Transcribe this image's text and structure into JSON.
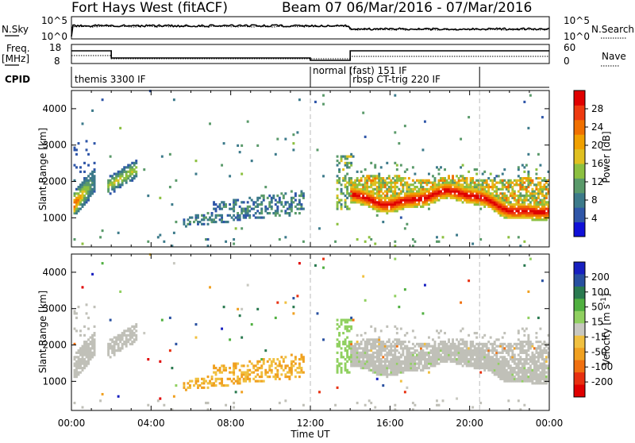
{
  "header": {
    "station": "Fort Hays West (fitACF)",
    "beam_date": "Beam 07  06/Mar/2016 - 07/Mar/2016"
  },
  "noise_panel": {
    "left_label": "N.Sky",
    "left_ticks": [
      "10^5",
      "10^0"
    ],
    "right_ticks": [
      "10^5",
      "10^0"
    ],
    "right_label": "N.Search"
  },
  "freq_panel": {
    "left_label_1": "Freq.",
    "left_label_2": "[MHz]",
    "left_ticks": [
      "18",
      "8"
    ],
    "right_ticks": [
      "60",
      "0"
    ],
    "right_label": "Nave"
  },
  "cpid": {
    "label": "CPID",
    "programs": [
      {
        "name": "themis 3300 IF",
        "start_hour": 0
      },
      {
        "name": "normal (fast) 151 IF",
        "start_hour": 12
      },
      {
        "name": "rbsp CT-trig 220 IF",
        "start_hour": 14
      }
    ]
  },
  "colors": {
    "power_scale": [
      "#1010d8",
      "#2f56a8",
      "#3c7a8a",
      "#5a9a6a",
      "#8cc040",
      "#e0c020",
      "#f0a000",
      "#f07000",
      "#ee3a10",
      "#e00000"
    ],
    "velocity_scale": [
      "#1820c0",
      "#2850a0",
      "#2a7a50",
      "#50b040",
      "#90d060",
      "#c8c8c0",
      "#f0c040",
      "#f0a020",
      "#f07010",
      "#e83010",
      "#e00000"
    ],
    "ground_scatter": "#c0c0b8"
  },
  "chart_data": [
    {
      "type": "heatmap",
      "title": "",
      "xlabel": "",
      "ylabel": "Slant Range [km]",
      "xlim_hours": [
        0,
        24
      ],
      "ylim": [
        200,
        4500
      ],
      "x_tick_labels": [
        "00:00",
        "04:00",
        "08:00",
        "12:00",
        "16:00",
        "20:00",
        "00:00"
      ],
      "y_ticks": [
        1000,
        2000,
        3000,
        4000
      ],
      "colorbar": {
        "label": "Power [dB]",
        "min": 0,
        "max": 32,
        "ticks": [
          4,
          8,
          12,
          16,
          20,
          24,
          28
        ]
      },
      "features": [
        {
          "name": "early band",
          "t_start": 0.1,
          "t_end": 1.1,
          "range_start": 1300,
          "range_end": 2100,
          "power": 14
        },
        {
          "name": "early band 2",
          "t_start": 1.8,
          "t_end": 3.3,
          "range_start": 1750,
          "range_end": 2500,
          "power": 10
        },
        {
          "name": "evening band",
          "t_start": 5.5,
          "t_end": 11.5,
          "range_start": 800,
          "range_end": 1500,
          "power": 7
        },
        {
          "name": "main echo",
          "t_start": 13.9,
          "t_end": 24,
          "range_start": 1100,
          "range_end": 2200,
          "power": 26
        }
      ]
    },
    {
      "type": "heatmap",
      "title": "",
      "xlabel": "Time UT",
      "ylabel": "Slant Range [km]",
      "xlim_hours": [
        0,
        24
      ],
      "ylim": [
        200,
        4500
      ],
      "x_tick_labels": [
        "00:00",
        "04:00",
        "08:00",
        "12:00",
        "16:00",
        "20:00",
        "00:00"
      ],
      "y_ticks": [
        1000,
        2000,
        3000,
        4000
      ],
      "colorbar": {
        "label": "Velocity [m s^-1]",
        "ticks": [
          200,
          100,
          50,
          15,
          -15,
          -50,
          -100,
          -200
        ]
      }
    }
  ],
  "x_axis": {
    "ticks": [
      "00:00",
      "04:00",
      "08:00",
      "12:00",
      "16:00",
      "20:00",
      "00:00"
    ],
    "label": "Time UT"
  },
  "power_panel": {
    "ylabel": "Slant Range [km]",
    "yticks": [
      "1000",
      "2000",
      "3000",
      "4000"
    ],
    "colorbar_label": "Power [dB]",
    "colorbar_ticks": [
      "4",
      "8",
      "12",
      "16",
      "20",
      "24",
      "28"
    ]
  },
  "velocity_panel": {
    "ylabel": "Slant Range [km]",
    "yticks": [
      "1000",
      "2000",
      "3000",
      "4000"
    ],
    "colorbar_label": "Velocity [m s",
    "colorbar_unit_sup": "-1",
    "colorbar_label_end": "]",
    "colorbar_ticks": [
      "200",
      "100",
      "50",
      "15",
      "-15",
      "-50",
      "-100",
      "-200"
    ]
  }
}
